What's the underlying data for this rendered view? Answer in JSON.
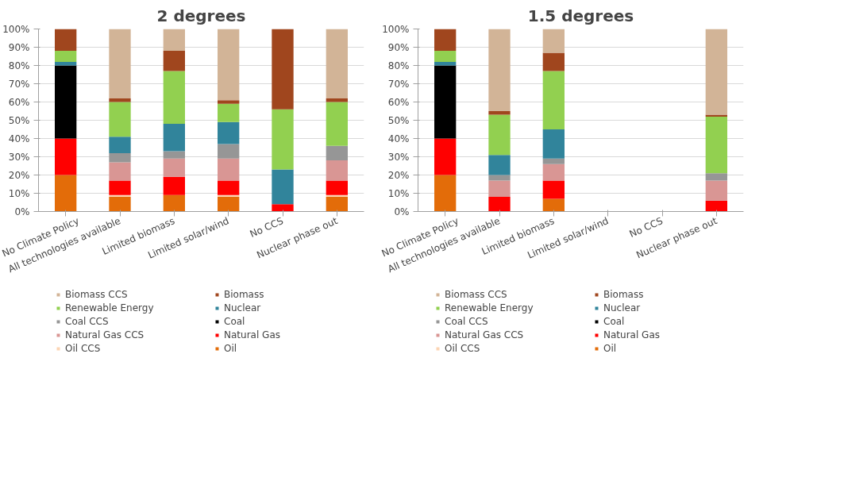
{
  "chart_data": [
    {
      "type": "bar",
      "title": "2 degrees",
      "stacked": true,
      "legend": "bottom",
      "grid": "y",
      "categories": [
        "No Climate Policy",
        "All technologies available",
        "Limited biomass",
        "Limited solar/wind",
        "No CCS",
        "Nuclear phase out"
      ],
      "ylim": [
        0,
        100
      ],
      "yticks": [
        {
          "value": 0,
          "label": "0%"
        },
        {
          "value": 10,
          "label": "10%"
        },
        {
          "value": 20,
          "label": "20%"
        },
        {
          "value": 30,
          "label": "30%"
        },
        {
          "value": 40,
          "label": "40%"
        },
        {
          "value": 50,
          "label": "50%"
        },
        {
          "value": 60,
          "label": "60%"
        },
        {
          "value": 70,
          "label": "70%"
        },
        {
          "value": 80,
          "label": "80%"
        },
        {
          "value": 90,
          "label": "90%"
        },
        {
          "value": 100,
          "label": "100%"
        }
      ],
      "series": [
        {
          "name": "Oil",
          "color": "#e36c09",
          "values": [
            20,
            8,
            9,
            8,
            0,
            8
          ]
        },
        {
          "name": "Oil CCS",
          "color": "#fcd5b4",
          "values": [
            0,
            1,
            0,
            1,
            0,
            1
          ]
        },
        {
          "name": "Natural Gas",
          "color": "#ff0000",
          "values": [
            20,
            8,
            10,
            8,
            4,
            8
          ]
        },
        {
          "name": "Natural Gas CCS",
          "color": "#d99694",
          "values": [
            0,
            10,
            10,
            12,
            0,
            11
          ]
        },
        {
          "name": "Coal",
          "color": "#000000",
          "values": [
            40,
            0,
            0,
            0,
            0,
            0
          ]
        },
        {
          "name": "Coal CCS",
          "color": "#969696",
          "values": [
            0,
            5,
            4,
            8,
            0,
            8
          ]
        },
        {
          "name": "Nuclear",
          "color": "#31849b",
          "values": [
            2,
            9,
            15,
            12,
            19,
            0
          ]
        },
        {
          "name": "Renewable Energy",
          "color": "#92d050",
          "values": [
            6,
            19,
            29,
            10,
            33,
            24
          ]
        },
        {
          "name": "Biomass",
          "color": "#a0461e",
          "values": [
            12,
            2,
            11,
            2,
            44,
            2
          ]
        },
        {
          "name": "Biomass CCS",
          "color": "#d2b497",
          "values": [
            0,
            38,
            12,
            39,
            0,
            38
          ]
        }
      ]
    },
    {
      "type": "bar",
      "title": "1.5 degrees",
      "stacked": true,
      "legend": "bottom",
      "grid": "y",
      "categories": [
        "No Climate Policy",
        "All technologies available",
        "Limited biomass",
        "Limited solar/wind",
        "No CCS",
        "Nuclear phase out"
      ],
      "ylim": [
        0,
        100
      ],
      "yticks": [
        {
          "value": 0,
          "label": "0%"
        },
        {
          "value": 10,
          "label": "10%"
        },
        {
          "value": 20,
          "label": "20%"
        },
        {
          "value": 30,
          "label": "30%"
        },
        {
          "value": 40,
          "label": "40%"
        },
        {
          "value": 50,
          "label": "50%"
        },
        {
          "value": 60,
          "label": "60%"
        },
        {
          "value": 70,
          "label": "70%"
        },
        {
          "value": 80,
          "label": "80%"
        },
        {
          "value": 90,
          "label": "90%"
        },
        {
          "value": 100,
          "label": "100%"
        }
      ],
      "series": [
        {
          "name": "Oil",
          "color": "#e36c09",
          "values": [
            20,
            0,
            7,
            null,
            null,
            0
          ]
        },
        {
          "name": "Oil CCS",
          "color": "#fcd5b4",
          "values": [
            0,
            0,
            0,
            null,
            null,
            0
          ]
        },
        {
          "name": "Natural Gas",
          "color": "#ff0000",
          "values": [
            20,
            8,
            10,
            null,
            null,
            6
          ]
        },
        {
          "name": "Natural Gas CCS",
          "color": "#d99694",
          "values": [
            0,
            9,
            9,
            null,
            null,
            11
          ]
        },
        {
          "name": "Coal",
          "color": "#000000",
          "values": [
            40,
            0,
            0,
            null,
            null,
            0
          ]
        },
        {
          "name": "Coal CCS",
          "color": "#969696",
          "values": [
            0,
            3,
            3,
            null,
            null,
            4
          ]
        },
        {
          "name": "Nuclear",
          "color": "#31849b",
          "values": [
            2,
            11,
            16,
            null,
            null,
            0
          ]
        },
        {
          "name": "Renewable Energy",
          "color": "#92d050",
          "values": [
            6,
            22,
            32,
            null,
            null,
            31
          ]
        },
        {
          "name": "Biomass",
          "color": "#a0461e",
          "values": [
            12,
            2,
            10,
            null,
            null,
            1
          ]
        },
        {
          "name": "Biomass CCS",
          "color": "#d2b497",
          "values": [
            0,
            45,
            13,
            null,
            null,
            47
          ]
        }
      ]
    }
  ]
}
